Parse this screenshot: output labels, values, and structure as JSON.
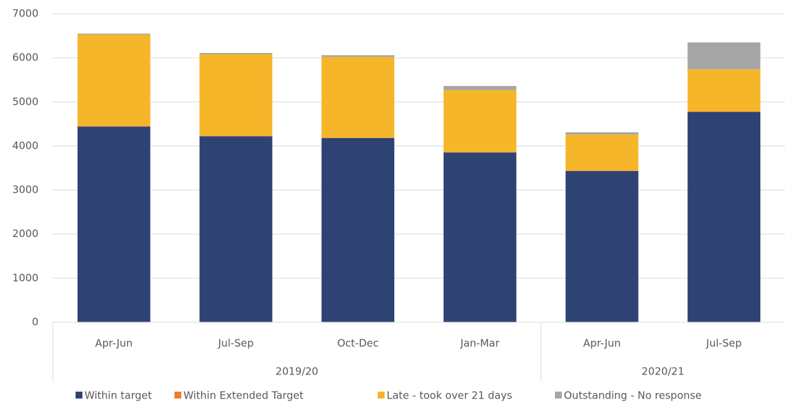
{
  "chart_data": {
    "type": "bar",
    "stacked": true,
    "categories": [
      "Apr-Jun",
      "Jul-Sep",
      "Oct-Dec",
      "Jan-Mar",
      "Apr-Jun",
      "Jul-Sep"
    ],
    "groups": [
      {
        "label": "2019/20",
        "count": 4
      },
      {
        "label": "2020/21",
        "count": 2
      }
    ],
    "series": [
      {
        "name": "Within target",
        "color": "#2e4374",
        "values": [
          4440,
          4220,
          4180,
          3850,
          3430,
          4770
        ]
      },
      {
        "name": "Within Extended Target",
        "color": "#ed7d31",
        "values": [
          10,
          10,
          10,
          10,
          10,
          20
        ]
      },
      {
        "name": "Late - took over 21 days",
        "color": "#f6b62a",
        "values": [
          2080,
          1850,
          1830,
          1410,
          820,
          950
        ]
      },
      {
        "name": "Outstanding - No response",
        "color": "#a5a5a5",
        "values": [
          20,
          30,
          40,
          90,
          50,
          610
        ]
      }
    ],
    "ylim": [
      0,
      7000
    ],
    "yticks": [
      0,
      1000,
      2000,
      3000,
      4000,
      5000,
      6000,
      7000
    ],
    "grid": true,
    "legend": "bottom"
  }
}
